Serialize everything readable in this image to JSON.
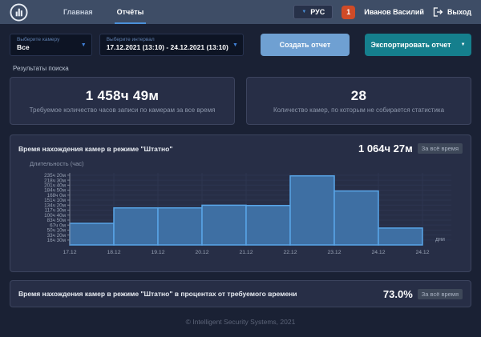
{
  "topbar": {
    "nav": [
      {
        "label": "Главная",
        "active": false
      },
      {
        "label": "Отчёты",
        "active": true
      }
    ],
    "lang": "РУС",
    "notif_count": "1",
    "user_name": "Иванов Василий",
    "logout_label": "Выход"
  },
  "filters": {
    "camera": {
      "label": "Выберите камеру",
      "value": "Все"
    },
    "interval": {
      "label": "Выберите интервал",
      "value": "17.12.2021 (13:10) - 24.12.2021 (13:10)"
    },
    "create_report_label": "Создать отчет",
    "export_report_label": "Экспортировать отчет"
  },
  "results": {
    "title": "Результаты поиска",
    "cards": [
      {
        "value": "1 458ч 49м",
        "caption": "Требуемое количество часов записи по камерам за все время"
      },
      {
        "value": "28",
        "caption": "Количество камер, по которым не собирается статистика"
      }
    ]
  },
  "chart_panel": {
    "title": "Время нахождения камер в режиме \"Штатно\"",
    "total_value": "1 064ч 27м",
    "period_badge": "За всё время"
  },
  "percent_panel": {
    "title": "Время нахождения камер в режиме \"Штатно\" в процентах от требуемого времени",
    "value": "73.0%",
    "period_badge": "За всё время"
  },
  "footer": {
    "copyright": "© Intelligent Security Systems, 2021"
  },
  "colors": {
    "accent_blue": "#4a90d9",
    "create_button": "#6fa0d2",
    "export_button": "#157f8d",
    "notif_orange": "#d04b27"
  },
  "chart_data": {
    "type": "bar",
    "title": "Время нахождения камер в режиме \"Штатно\"",
    "ylabel": "Длительность (час)",
    "xlabel": "дни",
    "x_tick_labels": [
      "17.12",
      "18.12",
      "19.12",
      "20.12",
      "21.12",
      "22.12",
      "23.12",
      "24.12",
      "24.12"
    ],
    "categories": [
      "17.12",
      "18.12",
      "19.12",
      "20.12",
      "21.12",
      "22.12",
      "23.12",
      "24.12"
    ],
    "values_hours": [
      73,
      125,
      125,
      134,
      133,
      233,
      182,
      57
    ],
    "y_ticks": {
      "labels": [
        "235ч 20м",
        "218ч 30м",
        "201ч 40м",
        "184ч 50м",
        "168ч 0м",
        "151ч 10м",
        "134ч 20м",
        "117ч 30м",
        "100ч 40м",
        "83ч 50м",
        "67ч 0м",
        "50ч 10м",
        "33ч 20м",
        "16ч 30м"
      ],
      "hours": [
        235.333,
        218.5,
        201.667,
        184.833,
        168.0,
        151.167,
        134.333,
        117.5,
        100.667,
        83.833,
        67.0,
        50.167,
        33.333,
        16.5
      ]
    },
    "ylim": [
      0,
      243
    ],
    "grid": true,
    "legend": false,
    "bar_fill": "#3e6fa3",
    "bar_stroke": "#59a5e8",
    "grid_color": "#2d3550",
    "axis_color": "#7f8798",
    "tick_color": "#98a2b4"
  }
}
